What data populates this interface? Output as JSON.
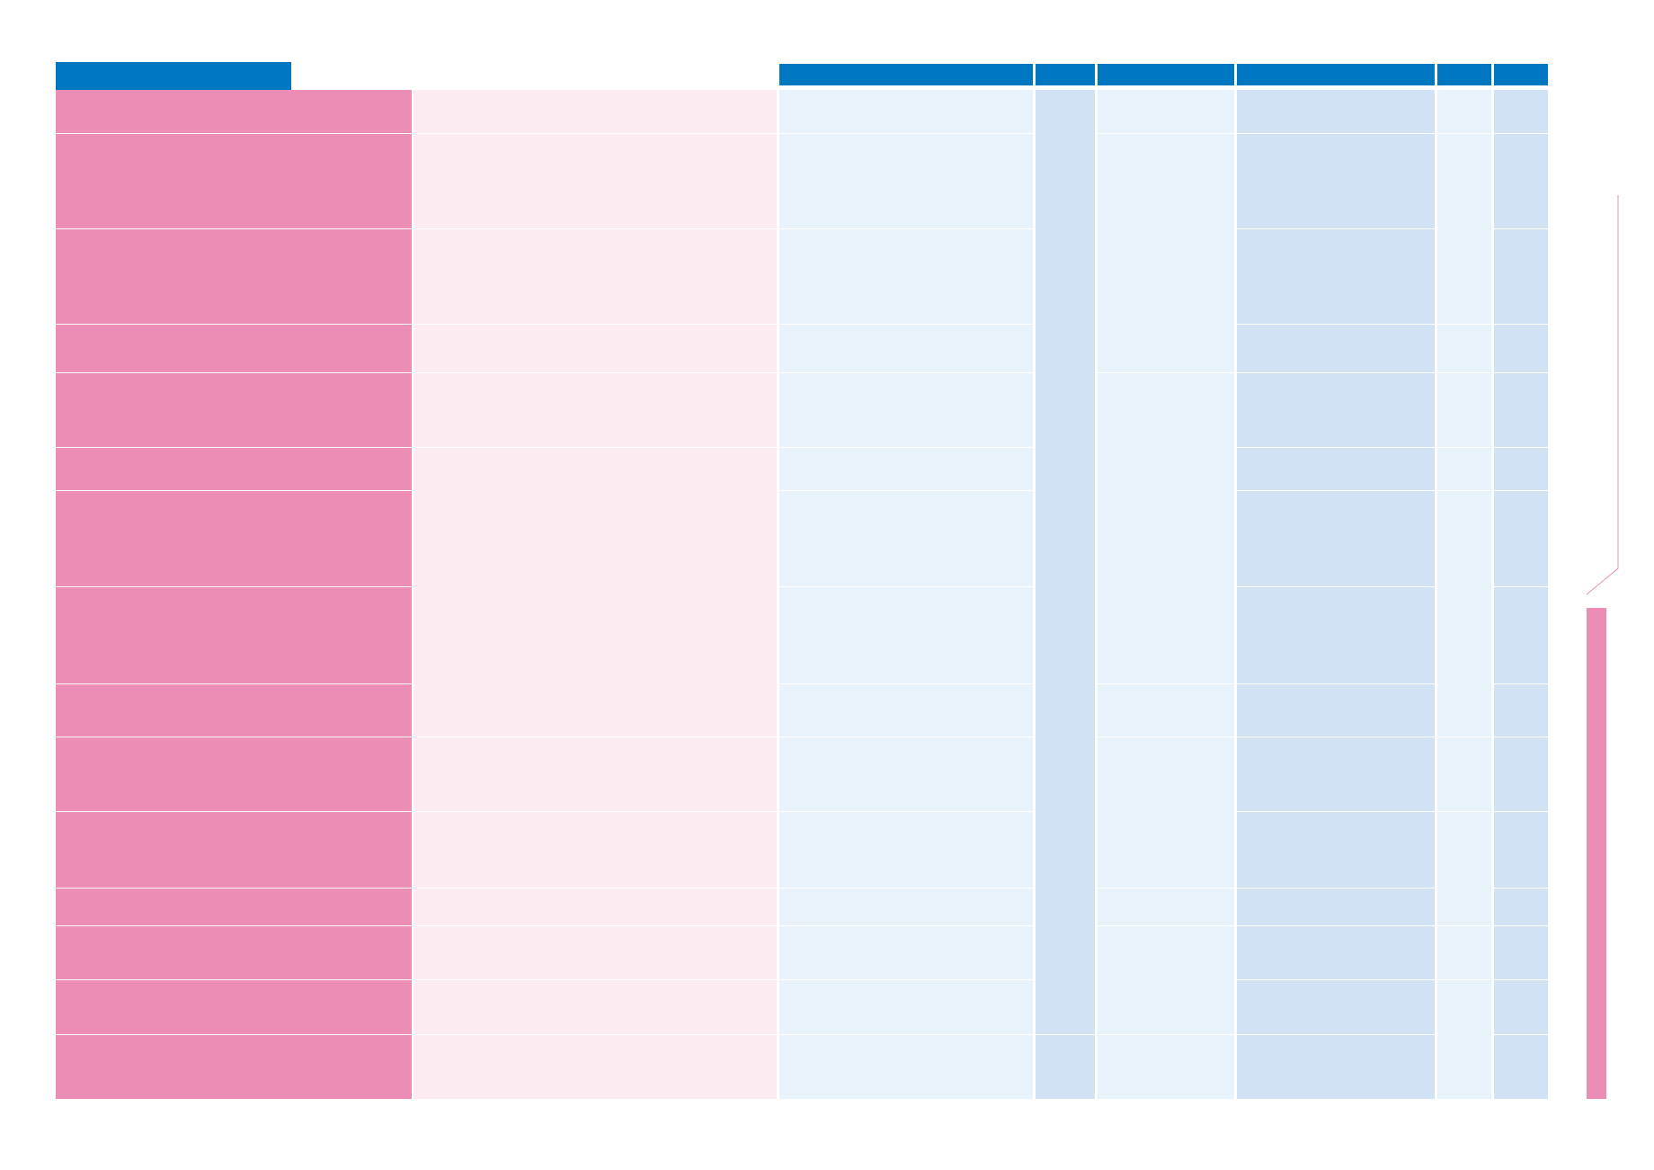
{
  "colors": {
    "header_blue": "#0078c1",
    "pink_strong": "#ec8db5",
    "pink_soft": "#fcebf1",
    "blue_soft": "#e8f2fb",
    "blue_mid": "#d0e2f4",
    "side_outline": "#ec8db5"
  },
  "document": {
    "title_tab": "",
    "column_headers": [
      "",
      "",
      "",
      "",
      "",
      ""
    ],
    "rows": [
      {
        "label": "",
        "detail": ""
      },
      {
        "label": "",
        "detail": ""
      },
      {
        "label": "",
        "detail": ""
      },
      {
        "label": "",
        "detail": ""
      },
      {
        "label": "",
        "detail": ""
      },
      {
        "label": "",
        "detail": ""
      },
      {
        "label": "",
        "detail": ""
      },
      {
        "label": "",
        "detail": ""
      },
      {
        "label": "",
        "detail": ""
      },
      {
        "label": "",
        "detail": ""
      },
      {
        "label": "",
        "detail": ""
      },
      {
        "label": "",
        "detail": ""
      },
      {
        "label": "",
        "detail": ""
      },
      {
        "label": "",
        "detail": ""
      },
      {
        "label": "",
        "detail": ""
      }
    ]
  }
}
